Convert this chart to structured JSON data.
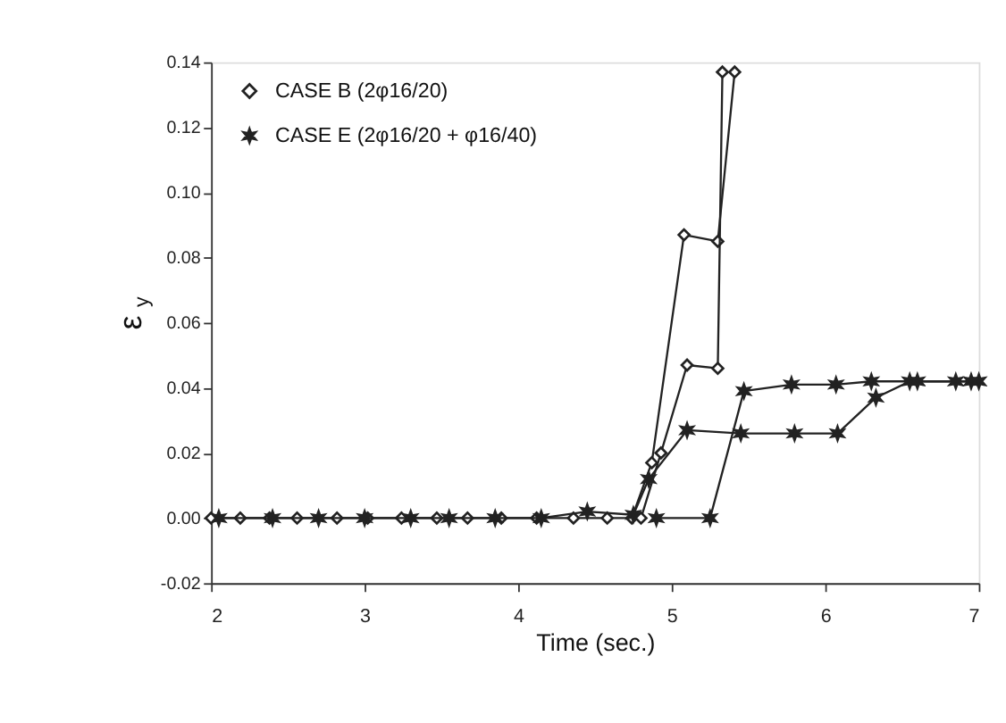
{
  "chart_data": {
    "type": "line",
    "xlabel": "Time (sec.)",
    "ylabel": "ε$_{y}$",
    "xlim": [
      2,
      7
    ],
    "xticks": [
      2,
      3,
      4,
      5,
      6,
      7
    ],
    "ylim": [
      -0.02,
      0.14
    ],
    "yticks": [
      {
        "value": -0.02,
        "label": "-0.02"
      },
      {
        "value": 0,
        "label": "0.00"
      },
      {
        "value": 0.02,
        "label": "0.02"
      },
      {
        "value": 0.04,
        "label": "0.04"
      },
      {
        "value": 0.06,
        "label": "0.06"
      },
      {
        "value": 0.08,
        "label": "0.08"
      },
      {
        "value": 0.1,
        "label": "0.10"
      },
      {
        "value": 0.12,
        "label": "0.12"
      },
      {
        "value": 0.14,
        "label": "0.14"
      }
    ],
    "grid": false,
    "legend": "top left",
    "line_style": "solid",
    "series": [
      {
        "name": "CASE B (2φ16/20)",
        "color": "#222222",
        "marker": "diamond",
        "x": [
          2,
          2.19,
          2.38,
          2.56,
          2.82,
          3.02,
          3.24,
          3.47,
          3.67,
          3.89,
          4.12,
          4.36,
          4.58,
          4.74,
          4.87,
          5.08,
          5.3,
          5.41
        ],
        "values": [
          0,
          0,
          0,
          0,
          0,
          0,
          0,
          0,
          0,
          0,
          0,
          0,
          0,
          0,
          0.017,
          0.087,
          0.085,
          0.137
        ]
      },
      {
        "name": "CASE E (2φ16/20 + φ16/40)",
        "color": "#222222",
        "marker": "cross",
        "x": [
          2.05,
          2.4,
          2.7,
          3.0,
          3.3,
          3.55,
          3.85,
          4.15,
          4.45,
          4.75,
          4.85,
          5.1,
          5.45,
          5.8,
          6.08,
          6.33,
          6.55,
          6.85,
          7
        ],
        "values": [
          0,
          0,
          0,
          0,
          0,
          0,
          0,
          0,
          0.002,
          0.001,
          0.012,
          0.027,
          0.026,
          0.026,
          0.026,
          0.037,
          0.042,
          0.042,
          0.042
        ]
      },
      {
        "color": "#222222",
        "marker": "diamond",
        "x": [
          4.8,
          4.93,
          5.1,
          5.3,
          5.33
        ],
        "values": [
          0,
          0.02,
          0.047,
          0.046,
          0.137
        ]
      },
      {
        "color": "#222222",
        "marker": "cross",
        "x": [
          4.9,
          5.25,
          5.47,
          5.78,
          6.07,
          6.3,
          6.6,
          6.95
        ],
        "values": [
          0,
          0,
          0.039,
          0.041,
          0.041,
          0.042,
          0.042,
          0.042
        ]
      }
    ]
  }
}
